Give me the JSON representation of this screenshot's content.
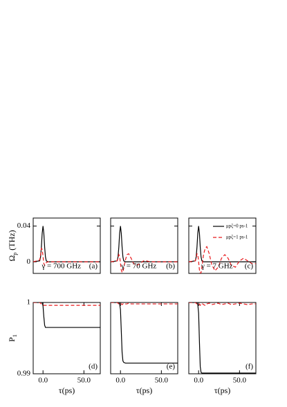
{
  "chart_data": [
    {
      "type": "line",
      "y_label": [
        "Ω",
        "p",
        " (THz)"
      ],
      "annotations": [
        "γ = 700 GHz",
        "(a)"
      ],
      "x": [
        -12,
        -4,
        -3,
        -2,
        -1,
        0,
        1,
        2,
        3,
        4,
        6,
        8,
        10,
        13,
        16,
        20,
        24,
        28,
        32,
        36,
        40,
        45,
        50,
        55,
        60,
        65,
        70
      ],
      "xlim": [
        -12,
        70
      ],
      "ylim": [
        -0.013,
        0.049
      ],
      "yticks": [
        0,
        0.04
      ],
      "tick_labels": {
        "x": false,
        "y": true
      },
      "series": [
        {
          "color": "#000000",
          "dash": "solid",
          "values": [
            0,
            0.0011,
            0.0054,
            0.0164,
            0.032,
            0.04,
            0.032,
            0.0164,
            0.0054,
            0.0011,
            0,
            0,
            0,
            0,
            0,
            0,
            0,
            0,
            0,
            0,
            0,
            0,
            0,
            0,
            0,
            0,
            0
          ]
        },
        {
          "color": "#e8191c",
          "dash": "dashed",
          "values": [
            0,
            0.002,
            0.008,
            0.015,
            0.014,
            0.006,
            -0.002,
            -0.004,
            -0.002,
            -0.001,
            0,
            0,
            0,
            0,
            0,
            0,
            0,
            0,
            0,
            0,
            0,
            0,
            0,
            0,
            0,
            0,
            0
          ]
        }
      ]
    },
    {
      "type": "line",
      "annotations": [
        "γ = 70 GHz",
        "(b)"
      ],
      "x": [
        -12,
        -4,
        -3,
        -2,
        -1,
        0,
        1,
        2,
        3,
        4,
        6,
        8,
        10,
        13,
        16,
        20,
        24,
        28,
        32,
        36,
        40,
        45,
        50,
        55,
        60,
        65,
        70
      ],
      "xlim": [
        -12,
        70
      ],
      "ylim": [
        -0.013,
        0.049
      ],
      "yticks": [
        0,
        0.04
      ],
      "tick_labels": {
        "x": false,
        "y": false
      },
      "series": [
        {
          "color": "#000000",
          "dash": "solid",
          "values": [
            0,
            0.0011,
            0.0054,
            0.0164,
            0.032,
            0.04,
            0.032,
            0.0164,
            0.0054,
            0.0011,
            0,
            0,
            0,
            0,
            0,
            0,
            0,
            0,
            0,
            0,
            0,
            0,
            0,
            0,
            0,
            0,
            0
          ]
        },
        {
          "color": "#e8191c",
          "dash": "dashed",
          "values": [
            0,
            0.001,
            0.004,
            0.008,
            0.006,
            -0.002,
            -0.009,
            -0.012,
            -0.011,
            -0.007,
            0.002,
            0.008,
            0.009,
            0.004,
            -0.002,
            -0.004,
            -0.002,
            0.001,
            0.001,
            0,
            0,
            0,
            0,
            0,
            0,
            0,
            0
          ]
        }
      ]
    },
    {
      "type": "line",
      "annotations": [
        "γ = 7 GHz",
        "(c)"
      ],
      "legend": "upper right",
      "x": [
        -12,
        -4,
        -3,
        -2,
        -1,
        0,
        1,
        2,
        3,
        4,
        6,
        8,
        10,
        13,
        16,
        20,
        24,
        28,
        32,
        36,
        40,
        45,
        50,
        55,
        60,
        65,
        70
      ],
      "xlim": [
        -12,
        70
      ],
      "ylim": [
        -0.013,
        0.049
      ],
      "yticks": [
        0,
        0.04
      ],
      "tick_labels": {
        "x": false,
        "y": false
      },
      "series": [
        {
          "name": "μpζ=0 ps-1",
          "color": "#000000",
          "dash": "solid",
          "values": [
            0,
            0.0011,
            0.0054,
            0.0164,
            0.032,
            0.04,
            0.032,
            0.0164,
            0.0054,
            0.0011,
            0,
            0,
            0,
            0,
            0,
            0,
            0,
            0,
            0,
            0,
            0,
            0,
            0,
            0,
            0,
            0,
            0
          ]
        },
        {
          "name": "μpζ=1 ps-1",
          "color": "#e8191c",
          "dash": "dashed",
          "values": [
            0,
            0.001,
            0.004,
            0.009,
            0.008,
            0,
            -0.009,
            -0.013,
            -0.012,
            -0.006,
            0.008,
            0.015,
            0.017,
            0.009,
            -0.003,
            -0.01,
            -0.006,
            0.004,
            0.008,
            0.004,
            -0.004,
            -0.006,
            0.001,
            0.004,
            0.001,
            -0.002,
            -0.002
          ]
        }
      ]
    },
    {
      "type": "line",
      "y_label": [
        "P",
        "1",
        ""
      ],
      "x_label": "τ(ps)",
      "annotations": [
        "(d)"
      ],
      "x": [
        -12,
        -4,
        -3,
        -2,
        -1,
        0,
        1,
        2,
        3,
        4,
        6,
        8,
        10,
        13,
        16,
        20,
        24,
        28,
        32,
        36,
        40,
        45,
        50,
        55,
        60,
        65,
        70
      ],
      "xlim": [
        -12,
        70
      ],
      "ylim": [
        0.99,
        1.0
      ],
      "yticks": [
        0.99,
        1
      ],
      "xticks": [
        {
          "value": 0,
          "label": "0.0"
        },
        {
          "value": 50,
          "label": "50.0"
        }
      ],
      "tick_labels": {
        "x": true,
        "y": true
      },
      "series": [
        {
          "color": "#000000",
          "dash": "solid",
          "values": [
            1,
            1,
            1,
            1,
            1,
            0.9995,
            0.998,
            0.9968,
            0.9965,
            0.9965,
            0.9965,
            0.9965,
            0.9965,
            0.9965,
            0.9965,
            0.9965,
            0.9965,
            0.9965,
            0.9965,
            0.9965,
            0.9965,
            0.9965,
            0.9965,
            0.9965,
            0.9965,
            0.9965,
            0.9965
          ]
        },
        {
          "color": "#e8191c",
          "dash": "dashed",
          "values": [
            1,
            1,
            0.9999,
            0.9998,
            0.9997,
            0.9996,
            0.9996,
            0.9996,
            0.9996,
            0.9996,
            0.9996,
            0.9996,
            0.9996,
            0.9996,
            0.9996,
            0.9996,
            0.9996,
            0.9996,
            0.9996,
            0.9996,
            0.9996,
            0.9996,
            0.9996,
            0.9996,
            0.9996,
            0.9996,
            0.9996
          ]
        }
      ]
    },
    {
      "type": "line",
      "x_label": "τ(ps)",
      "annotations": [
        "(e)"
      ],
      "x": [
        -12,
        -4,
        -3,
        -2,
        -1,
        0,
        1,
        2,
        3,
        4,
        6,
        8,
        10,
        13,
        16,
        20,
        24,
        28,
        32,
        36,
        40,
        45,
        50,
        55,
        60,
        65,
        70
      ],
      "xlim": [
        -12,
        70
      ],
      "ylim": [
        0.99,
        1.0
      ],
      "yticks": [
        0.99,
        1
      ],
      "xticks": [
        {
          "value": 0,
          "label": "0.0"
        },
        {
          "value": 50,
          "label": "50.0"
        }
      ],
      "tick_labels": {
        "x": true,
        "y": false
      },
      "series": [
        {
          "color": "#000000",
          "dash": "solid",
          "values": [
            1,
            1,
            1,
            1,
            0.9998,
            0.999,
            0.996,
            0.993,
            0.9918,
            0.9916,
            0.9915,
            0.9915,
            0.9915,
            0.9915,
            0.9915,
            0.9915,
            0.9915,
            0.9915,
            0.9915,
            0.9915,
            0.9915,
            0.9915,
            0.9915,
            0.9915,
            0.9915,
            0.9915,
            0.9915
          ]
        },
        {
          "color": "#e8191c",
          "dash": "dashed",
          "values": [
            1,
            1,
            0.9999,
            0.9998,
            0.9998,
            0.9999,
            0.9998,
            0.9997,
            0.9998,
            0.9999,
            0.9998,
            0.9998,
            0.9999,
            0.9998,
            0.9998,
            0.9998,
            0.9998,
            0.9998,
            0.9998,
            0.9998,
            0.9998,
            0.9998,
            0.9998,
            0.9998,
            0.9998,
            0.9998,
            0.9998
          ]
        }
      ]
    },
    {
      "type": "line",
      "x_label": "τ(ps)",
      "annotations": [
        "(f)"
      ],
      "x": [
        -12,
        -4,
        -3,
        -2,
        -1,
        0,
        1,
        2,
        3,
        4,
        6,
        8,
        10,
        13,
        16,
        20,
        24,
        28,
        32,
        36,
        40,
        45,
        50,
        55,
        60,
        65,
        70
      ],
      "xlim": [
        -12,
        70
      ],
      "ylim": [
        0.99,
        1.0
      ],
      "yticks": [
        0.99,
        1
      ],
      "xticks": [
        {
          "value": 0,
          "label": "0.0"
        },
        {
          "value": 50,
          "label": "50.0"
        }
      ],
      "tick_labels": {
        "x": true,
        "y": false
      },
      "series": [
        {
          "color": "#000000",
          "dash": "solid",
          "values": [
            1,
            1,
            1,
            1,
            0.9997,
            0.9985,
            0.9945,
            0.991,
            0.9902,
            0.9901,
            0.9901,
            0.9901,
            0.9901,
            0.9901,
            0.9901,
            0.9901,
            0.9901,
            0.9901,
            0.9901,
            0.9901,
            0.9901,
            0.9901,
            0.9901,
            0.9901,
            0.9901,
            0.9901,
            0.9901
          ]
        },
        {
          "color": "#e8191c",
          "dash": "dashed",
          "values": [
            1,
            1,
            0.9999,
            0.9998,
            0.9998,
            0.9999,
            0.9997,
            0.9996,
            0.9998,
            0.9999,
            0.9997,
            0.9996,
            0.9998,
            0.9999,
            0.9997,
            0.9998,
            0.9999,
            0.9997,
            0.9998,
            0.9999,
            0.9997,
            0.9998,
            0.9999,
            0.9998,
            0.9997,
            0.9998,
            0.9998
          ]
        }
      ]
    }
  ]
}
